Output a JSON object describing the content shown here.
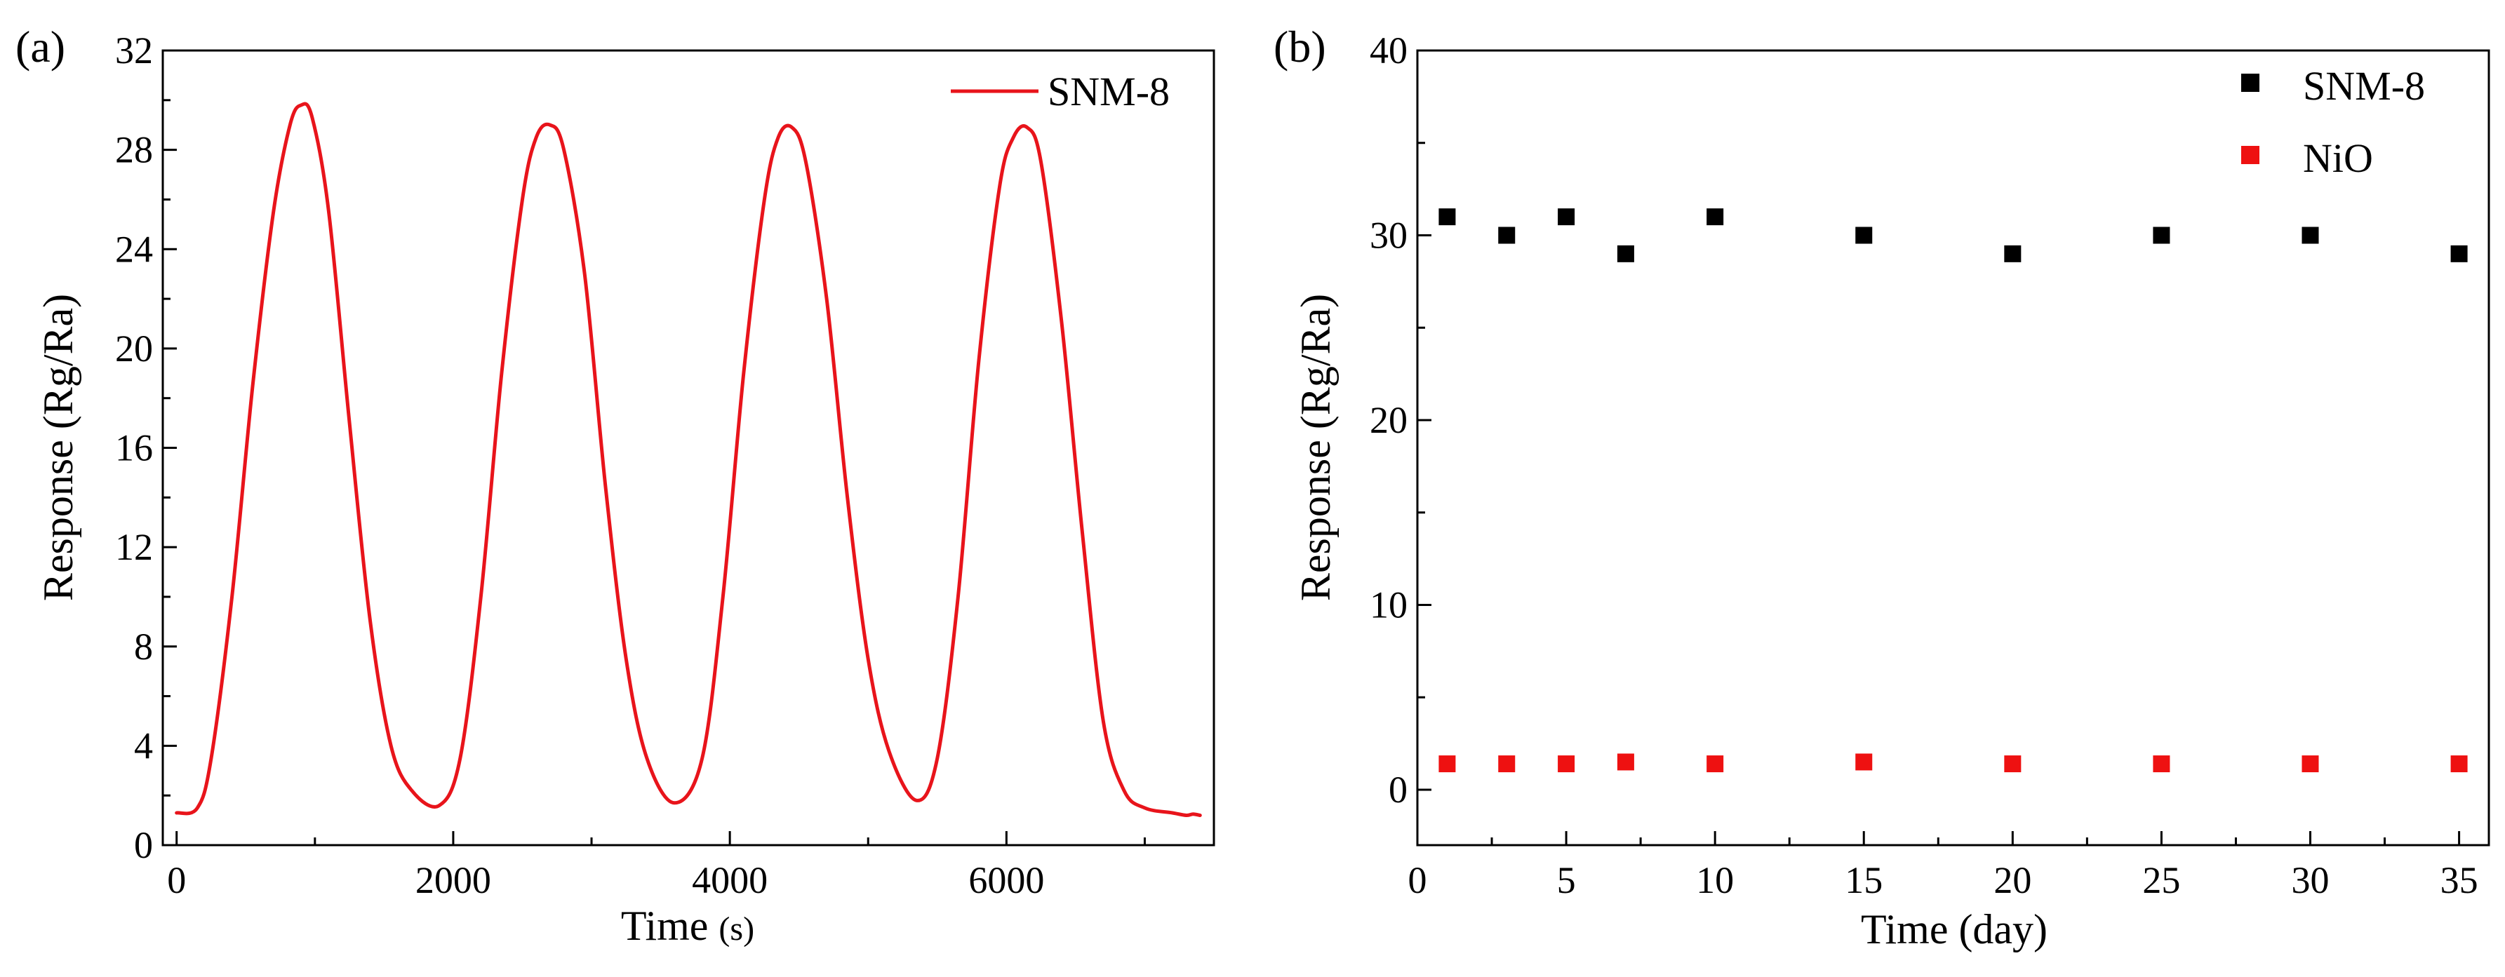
{
  "chart_data": [
    {
      "panel_label": "(a)",
      "type": "line",
      "xlabel_main": "Time ",
      "xlabel_unit": "(s)",
      "ylabel": "Response (Rg/Ra)",
      "xlim": [
        -100,
        7500
      ],
      "ylim": [
        0,
        32
      ],
      "xticks": [
        0,
        2000,
        4000,
        6000
      ],
      "yticks": [
        0,
        4,
        8,
        12,
        16,
        20,
        24,
        28,
        32
      ],
      "legend": "top-right",
      "series": [
        {
          "name": "SNM-8",
          "color": "#e8141b",
          "x": [
            0,
            150,
            250,
            400,
            550,
            700,
            820,
            900,
            980,
            1100,
            1250,
            1400,
            1550,
            1700,
            1900,
            2050,
            2200,
            2350,
            2500,
            2600,
            2700,
            2800,
            2950,
            3100,
            3250,
            3400,
            3600,
            3800,
            3950,
            4100,
            4250,
            4350,
            4450,
            4550,
            4700,
            4850,
            5000,
            5150,
            5350,
            5500,
            5650,
            5800,
            5950,
            6050,
            6150,
            6250,
            6400,
            6550,
            6700,
            6850,
            7000,
            7200,
            7300,
            7350,
            7400
          ],
          "y": [
            1.3,
            1.5,
            3.5,
            10.0,
            18.5,
            25.5,
            29.0,
            29.8,
            29.3,
            25.5,
            17.0,
            9.0,
            4.0,
            2.2,
            1.6,
            3.5,
            10.0,
            19.0,
            26.0,
            28.5,
            29.0,
            28.0,
            23.0,
            14.5,
            7.5,
            3.5,
            1.7,
            3.5,
            10.0,
            19.0,
            26.0,
            28.5,
            28.9,
            27.5,
            22.0,
            14.0,
            7.5,
            3.8,
            1.8,
            3.5,
            10.0,
            19.5,
            26.5,
            28.5,
            28.9,
            27.5,
            21.0,
            12.5,
            5.0,
            2.2,
            1.5,
            1.3,
            1.2,
            1.25,
            1.2
          ]
        }
      ]
    },
    {
      "panel_label": "(b)",
      "type": "scatter",
      "xlabel": "Time (day)",
      "ylabel": "Response (Rg/Ra)",
      "xlim": [
        0,
        36
      ],
      "ylim": [
        -3,
        40
      ],
      "xticks": [
        0,
        5,
        10,
        15,
        20,
        25,
        30,
        35
      ],
      "yticks": [
        0,
        10,
        20,
        30,
        40
      ],
      "legend": "top-right",
      "series": [
        {
          "name": "SNM-8",
          "color": "#000000",
          "x": [
            1,
            3,
            5,
            7,
            10,
            15,
            20,
            25,
            30,
            35
          ],
          "y": [
            31,
            30,
            31,
            29,
            31,
            30,
            29,
            30,
            30,
            29
          ]
        },
        {
          "name": "NiO",
          "color": "#ee1111",
          "x": [
            1,
            3,
            5,
            7,
            10,
            15,
            20,
            25,
            30,
            35
          ],
          "y": [
            1.4,
            1.4,
            1.4,
            1.5,
            1.4,
            1.5,
            1.4,
            1.4,
            1.4,
            1.4
          ]
        }
      ]
    }
  ]
}
